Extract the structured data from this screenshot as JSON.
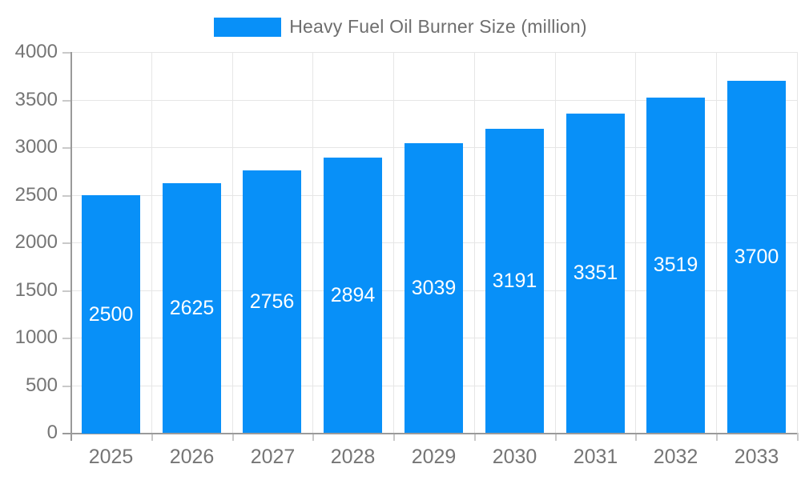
{
  "chart_data": {
    "type": "bar",
    "title": "",
    "categories": [
      "2025",
      "2026",
      "2027",
      "2028",
      "2029",
      "2030",
      "2031",
      "2032",
      "2033"
    ],
    "series": [
      {
        "name": "Heavy Fuel Oil Burner Size (million)",
        "values": [
          2500,
          2625,
          2756,
          2894,
          3039,
          3191,
          3351,
          3519,
          3700
        ],
        "color": "#0890f8"
      }
    ],
    "value_labels": [
      2500,
      2625,
      2756,
      2894,
      3039,
      3191,
      3351,
      3519,
      3700
    ],
    "xlabel": "",
    "ylabel": "",
    "ylim": [
      0,
      4000
    ],
    "yticks": [
      0,
      500,
      1000,
      1500,
      2000,
      2500,
      3000,
      3500,
      4000
    ],
    "grid": true,
    "legend_position": "top"
  },
  "legend": {
    "label": "Heavy Fuel Oil Burner Size (million)"
  },
  "colors": {
    "bar": "#0890f8",
    "value_label_text": "#ffffff",
    "tick_text": "#757575",
    "legend_text": "#6e6e6e",
    "gridline": "#e6e6e6",
    "axis_line": "#9a9a9a"
  }
}
